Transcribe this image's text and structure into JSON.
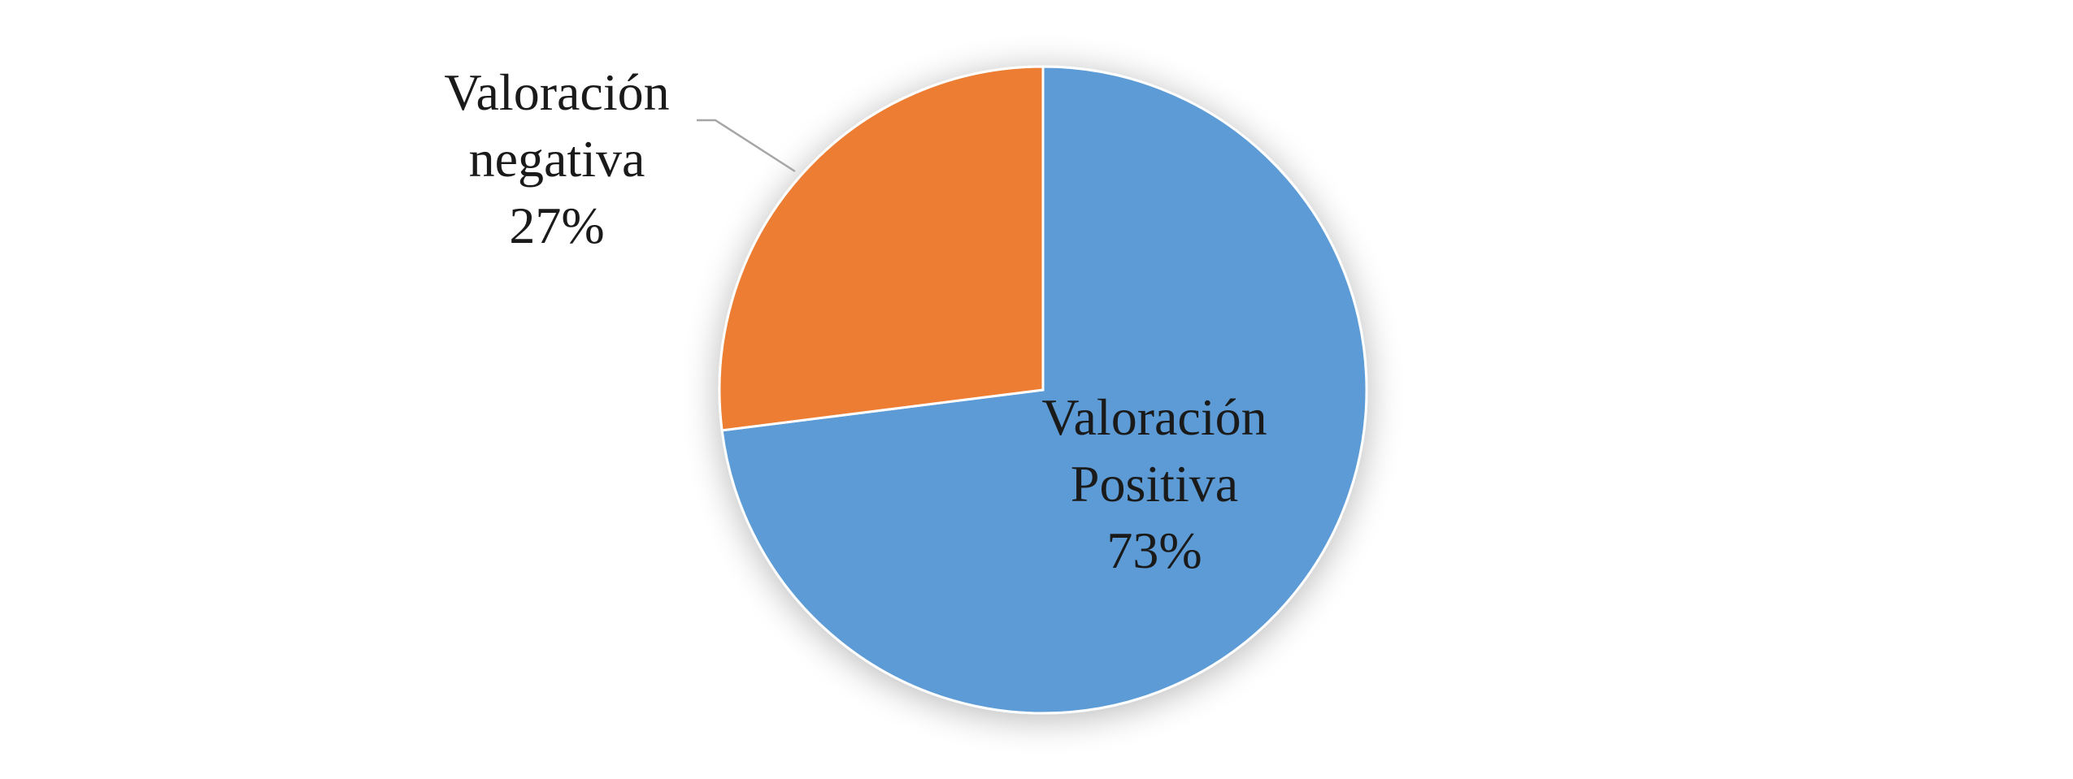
{
  "chart_data": {
    "type": "pie",
    "title": "",
    "start_angle_deg": 0,
    "direction": "clockwise",
    "legend": "none",
    "slices": [
      {
        "name": "Valoración Positiva",
        "label_lines": [
          "Valoración",
          "Positiva",
          "73%"
        ],
        "value": 73,
        "color": "#5b9bd5",
        "label_position": "inside"
      },
      {
        "name": "Valoración negativa",
        "label_lines": [
          "Valoración",
          "negativa",
          "27%"
        ],
        "value": 27,
        "color": "#ed7d31",
        "label_position": "outside-with-leader"
      }
    ]
  }
}
